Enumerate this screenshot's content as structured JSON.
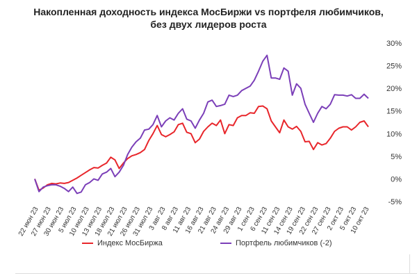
{
  "title_line1": "Накопленная доходность индекса МосБиржи vs портфеля любимчиков,",
  "title_line2": "без двух лидеров роста",
  "chart_data": {
    "type": "line",
    "title": "Накопленная доходность индекса МосБиржи vs портфеля любимчиков, без двух лидеров роста",
    "ylim": [
      -5,
      30
    ],
    "yticks": [
      "-5%",
      "0%",
      "5%",
      "10%",
      "15%",
      "20%",
      "25%",
      "30%"
    ],
    "ytick_values": [
      -5,
      0,
      5,
      10,
      15,
      20,
      25,
      30
    ],
    "xtick_labels": [
      "22 июн 23",
      "27 июн 23",
      "30 июн 23",
      "5 июл 23",
      "10 июл 23",
      "13 июл 23",
      "18 июл 23",
      "21 июл 23",
      "26 июл 23",
      "31 июл 23",
      "3 авг 23",
      "8 авг 23",
      "11 авг 23",
      "16 авг 23",
      "21 авг 23",
      "24 авг 23",
      "29 авг 23",
      "1 сен 23",
      "6 сен 23",
      "11 сен 23",
      "14 сен 23",
      "19 сен 23",
      "22 сен 23",
      "27 сен 23",
      "2 окт 23",
      "5 окт 23",
      "10 окт 23"
    ],
    "grid": false,
    "legend_position": "bottom",
    "series": [
      {
        "name": "Индекс МосБиржа",
        "color": "#e8262b",
        "values": [
          0,
          -2.5,
          -2.0,
          -1.3,
          -1.0,
          -1.1,
          -0.9,
          -1.0,
          -0.8,
          -0.3,
          0.2,
          0.8,
          1.4,
          2.0,
          2.5,
          2.4,
          3.0,
          3.5,
          4.8,
          4.2,
          2.3,
          3.5,
          4.5,
          5.1,
          5.4,
          5.8,
          6.5,
          8.5,
          10.0,
          11.8,
          9.8,
          9.3,
          9.8,
          10.4,
          12.0,
          12.3,
          10.3,
          10.0,
          8.0,
          8.8,
          10.5,
          11.5,
          12.3,
          11.8,
          13.0,
          10.0,
          12.0,
          11.8,
          13.5,
          14.0,
          14.0,
          14.6,
          14.5,
          16.0,
          16.1,
          15.5,
          12.8,
          11.5,
          10.2,
          13.0,
          11.5,
          11.0,
          11.6,
          10.5,
          8.2,
          8.3,
          6.5,
          8.0,
          7.5,
          7.8,
          9.0,
          10.5,
          11.2,
          11.5,
          11.5,
          10.8,
          11.5,
          12.5,
          12.8,
          11.5
        ],
        "x_index": [
          0,
          1,
          2,
          3,
          4,
          5,
          6,
          7,
          8,
          9,
          10,
          11,
          12,
          13,
          14,
          15,
          16,
          17,
          18,
          19,
          20,
          21,
          22,
          23,
          24,
          25,
          26,
          27,
          28,
          29,
          30,
          31,
          32,
          33,
          34,
          35,
          36,
          37,
          38,
          39,
          40,
          41,
          42,
          43,
          44,
          45,
          46,
          47,
          48,
          49,
          50,
          51,
          52,
          53,
          54,
          55,
          56,
          57,
          58,
          59,
          60,
          61,
          62,
          63,
          64,
          65,
          66,
          67,
          68,
          69,
          70,
          71,
          72,
          73,
          74,
          75,
          76,
          77,
          78,
          79
        ]
      },
      {
        "name": "Портфель любимчиков (-2)",
        "color": "#7b3fb8",
        "values": [
          0,
          -2.8,
          -1.8,
          -1.5,
          -1.3,
          -1.3,
          -1.6,
          -2.1,
          -2.8,
          -1.8,
          -3.2,
          -2.9,
          -1.3,
          -0.8,
          0,
          -0.3,
          1.1,
          1.5,
          2.3,
          0.5,
          1.5,
          3.0,
          5.4,
          7.0,
          8.2,
          9.0,
          10.8,
          11.0,
          12.0,
          14.0,
          11.5,
          12.8,
          13.5,
          13.0,
          14.5,
          15.5,
          13.2,
          12.8,
          11.2,
          13.0,
          14.5,
          17.0,
          17.4,
          16.0,
          16.2,
          16.5,
          18.5,
          18.2,
          18.5,
          19.5,
          20.0,
          20.5,
          21.8,
          23.8,
          26.0,
          27.3,
          22.3,
          22.3,
          22.0,
          24.5,
          23.8,
          18.5,
          21.0,
          20.0,
          16.5,
          14.5,
          12.5,
          14.5,
          16.0,
          15.5,
          16.5,
          18.6,
          18.5,
          18.5,
          18.3,
          18.6,
          17.8,
          17.8,
          18.7,
          17.8
        ],
        "x_index": [
          0,
          1,
          2,
          3,
          4,
          5,
          6,
          7,
          8,
          9,
          10,
          11,
          12,
          13,
          14,
          15,
          16,
          17,
          18,
          19,
          20,
          21,
          22,
          23,
          24,
          25,
          26,
          27,
          28,
          29,
          30,
          31,
          32,
          33,
          34,
          35,
          36,
          37,
          38,
          39,
          40,
          41,
          42,
          43,
          44,
          45,
          46,
          47,
          48,
          49,
          50,
          51,
          52,
          53,
          54,
          55,
          56,
          57,
          58,
          59,
          60,
          61,
          62,
          63,
          64,
          65,
          66,
          67,
          68,
          69,
          70,
          71,
          72,
          73,
          74,
          75,
          76,
          77,
          78,
          79
        ]
      }
    ]
  }
}
